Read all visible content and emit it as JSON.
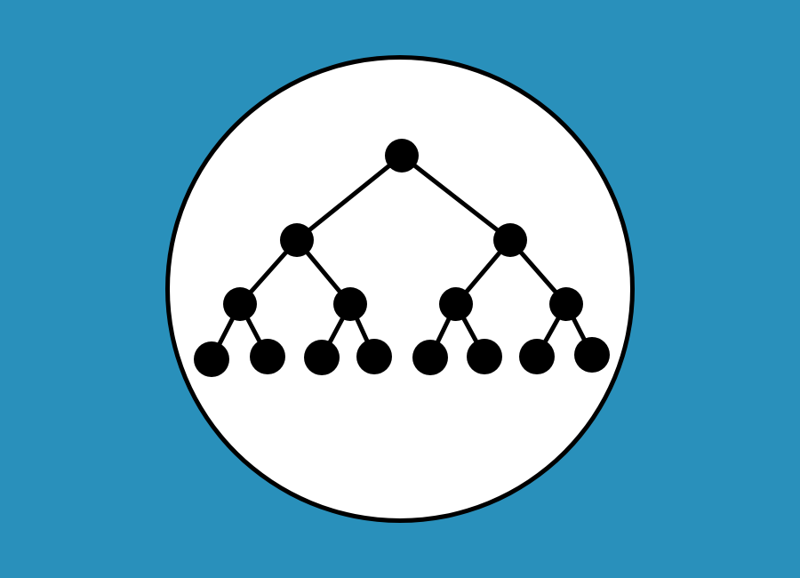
{
  "colors": {
    "background": "#2990bb",
    "badge_fill": "#ffffff",
    "ink": "#000000"
  },
  "icon": "binary-tree-icon",
  "tree": {
    "levels": 4,
    "branching": 2,
    "node_count": 15
  }
}
